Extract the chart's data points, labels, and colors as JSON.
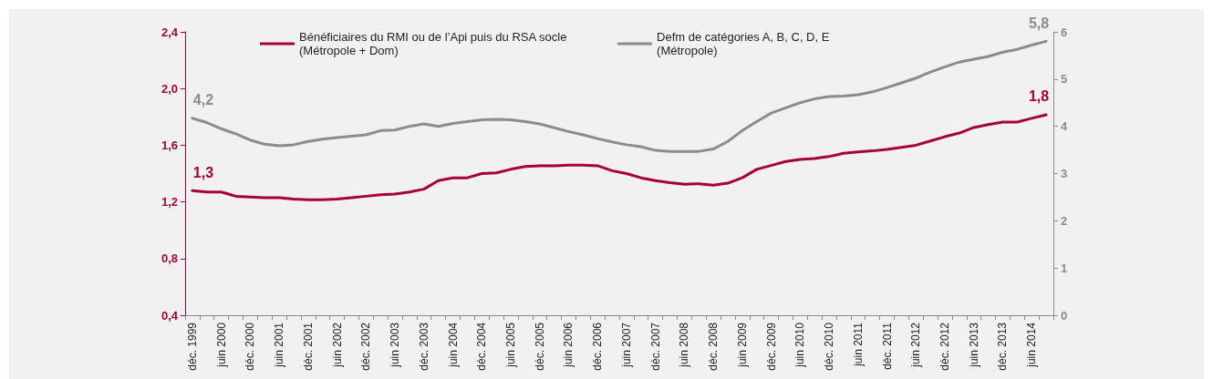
{
  "chart_data": {
    "type": "line",
    "categories": [
      "déc. 1999",
      null,
      "juin 2000",
      null,
      "déc. 2000",
      null,
      "juin 2001",
      null,
      "déc. 2001",
      null,
      "juin 2002",
      null,
      "déc. 2002",
      null,
      "juin 2003",
      null,
      "déc. 2003",
      null,
      "juin 2004",
      null,
      "déc. 2004",
      null,
      "juin 2005",
      null,
      "déc. 2005",
      null,
      "juin 2006",
      null,
      "déc. 2006",
      null,
      "juin 2007",
      null,
      "déc. 2007",
      null,
      "juin 2008",
      null,
      "déc. 2008",
      null,
      "juin 2009",
      null,
      "déc. 2009",
      null,
      "juin 2010",
      null,
      "déc. 2010",
      null,
      "juin 2011",
      null,
      "déc. 2011",
      null,
      "juin 2012",
      null,
      "déc. 2012",
      null,
      "juin 2013",
      null,
      "déc. 2013",
      null,
      "juin 2014",
      null
    ],
    "series": [
      {
        "name": "Bénéficiaires du RMI ou de l’Api puis du RSA socle\n(Métropole + Dom)",
        "color": "#a5003a",
        "axis": "y",
        "values": [
          1.28,
          1.27,
          1.27,
          1.24,
          1.235,
          1.23,
          1.23,
          1.22,
          1.215,
          1.215,
          1.22,
          1.23,
          1.24,
          1.25,
          1.255,
          1.27,
          1.29,
          1.35,
          1.37,
          1.37,
          1.4,
          1.405,
          1.43,
          1.45,
          1.455,
          1.455,
          1.46,
          1.46,
          1.455,
          1.42,
          1.4,
          1.37,
          1.35,
          1.335,
          1.325,
          1.328,
          1.318,
          1.332,
          1.37,
          1.43,
          1.457,
          1.485,
          1.5,
          1.506,
          1.52,
          1.543,
          1.553,
          1.56,
          1.57,
          1.585,
          1.6,
          1.63,
          1.66,
          1.686,
          1.725,
          1.746,
          1.763,
          1.763,
          1.79,
          1.815
        ],
        "value_labels": [
          "1,3",
          null,
          null,
          null,
          null,
          null,
          null,
          null,
          null,
          null,
          null,
          null,
          null,
          null,
          null,
          null,
          null,
          null,
          null,
          null,
          null,
          null,
          null,
          null,
          null,
          null,
          null,
          null,
          null,
          null,
          null,
          null,
          null,
          null,
          null,
          null,
          null,
          null,
          null,
          null,
          null,
          null,
          null,
          null,
          null,
          null,
          null,
          null,
          null,
          null,
          null,
          null,
          null,
          null,
          null,
          null,
          null,
          null,
          null,
          "1,8"
        ]
      },
      {
        "name": "Defm de catégories A, B, C, D, E\n(Métropole)",
        "color": "#8c8c8c",
        "axis": "y2",
        "values": [
          4.17,
          4.08,
          3.95,
          3.84,
          3.71,
          3.62,
          3.59,
          3.61,
          3.68,
          3.73,
          3.76,
          3.79,
          3.82,
          3.91,
          3.92,
          4.0,
          4.05,
          4.0,
          4.06,
          4.1,
          4.14,
          4.15,
          4.14,
          4.1,
          4.05,
          3.97,
          3.89,
          3.82,
          3.74,
          3.67,
          3.61,
          3.57,
          3.49,
          3.47,
          3.47,
          3.47,
          3.52,
          3.68,
          3.91,
          4.1,
          4.28,
          4.39,
          4.5,
          4.58,
          4.63,
          4.64,
          4.67,
          4.73,
          4.82,
          4.92,
          5.02,
          5.15,
          5.26,
          5.36,
          5.42,
          5.48,
          5.57,
          5.63,
          5.72,
          5.8
        ],
        "value_labels": [
          "4,2",
          null,
          null,
          null,
          null,
          null,
          null,
          null,
          null,
          null,
          null,
          null,
          null,
          null,
          null,
          null,
          null,
          null,
          null,
          null,
          null,
          null,
          null,
          null,
          null,
          null,
          null,
          null,
          null,
          null,
          null,
          null,
          null,
          null,
          null,
          null,
          null,
          null,
          null,
          null,
          null,
          null,
          null,
          null,
          null,
          null,
          null,
          null,
          null,
          null,
          null,
          null,
          null,
          null,
          null,
          null,
          null,
          null,
          null,
          "5,8"
        ]
      }
    ],
    "ylim": [
      0.4,
      2.4
    ],
    "yticks": [
      {
        "value": 0.4,
        "label": "0,4"
      },
      {
        "value": 0.8,
        "label": "0,8"
      },
      {
        "value": 1.2,
        "label": "1,2"
      },
      {
        "value": 1.6,
        "label": "1,6"
      },
      {
        "value": 2.0,
        "label": "2,0"
      },
      {
        "value": 2.4,
        "label": "2,4"
      }
    ],
    "y2lim": [
      0,
      6
    ],
    "y2ticks": [
      0,
      1,
      2,
      3,
      4,
      5,
      6
    ],
    "grid": false,
    "legend": "top",
    "marker": "none",
    "line_style": "solid"
  }
}
